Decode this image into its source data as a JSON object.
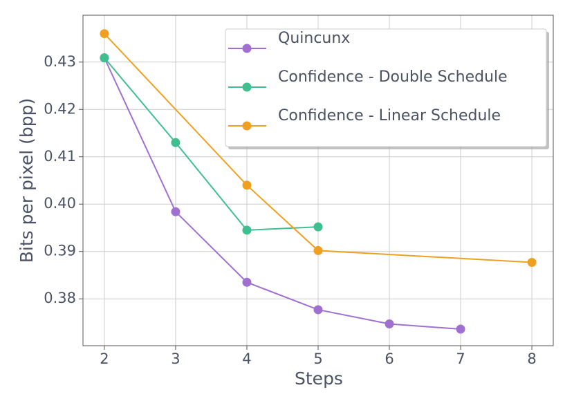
{
  "chart_data": {
    "type": "line",
    "xlabel": "Steps",
    "ylabel": "Bits per pixel (bpp)",
    "series": [
      {
        "name": "Quincunx",
        "color": "#a070d0",
        "x": [
          2,
          3,
          4,
          5,
          6,
          7
        ],
        "values": [
          0.4309,
          0.3984,
          0.3835,
          0.3777,
          0.3747,
          0.3736
        ]
      },
      {
        "name": "Confidence - Double Schedule",
        "color": "#3fbf8f",
        "x": [
          2,
          3,
          4,
          5
        ],
        "values": [
          0.4309,
          0.413,
          0.3945,
          0.3952
        ]
      },
      {
        "name": "Confidence - Linear Schedule",
        "color": "#f0a020",
        "x": [
          2,
          4,
          5,
          8
        ],
        "values": [
          0.436,
          0.404,
          0.3902,
          0.3877
        ]
      }
    ],
    "xlim": [
      1.7,
      8.3
    ],
    "xticks": [
      2,
      3,
      4,
      5,
      6,
      7,
      8
    ],
    "ylim": [
      0.3701,
      0.4399
    ],
    "yticks": [
      0.38,
      0.39,
      {
        "value": 0.4,
        "label": "0.40"
      },
      0.41,
      0.42,
      0.43
    ],
    "grid": true,
    "legend": "upper right"
  }
}
